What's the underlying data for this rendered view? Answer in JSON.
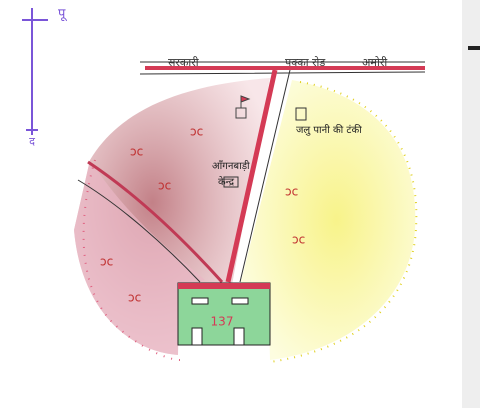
{
  "compass": {
    "east": "पू",
    "south": "द"
  },
  "road": {
    "left": "सरकारी",
    "middle": "पक्का रोड",
    "right": "अमोरी"
  },
  "landmarks": {
    "anganwadi": [
      "आँगनबाड़ी",
      "केन्द्र"
    ],
    "water_tank": "जलु पानी की टंकी",
    "school_number": "137"
  }
}
